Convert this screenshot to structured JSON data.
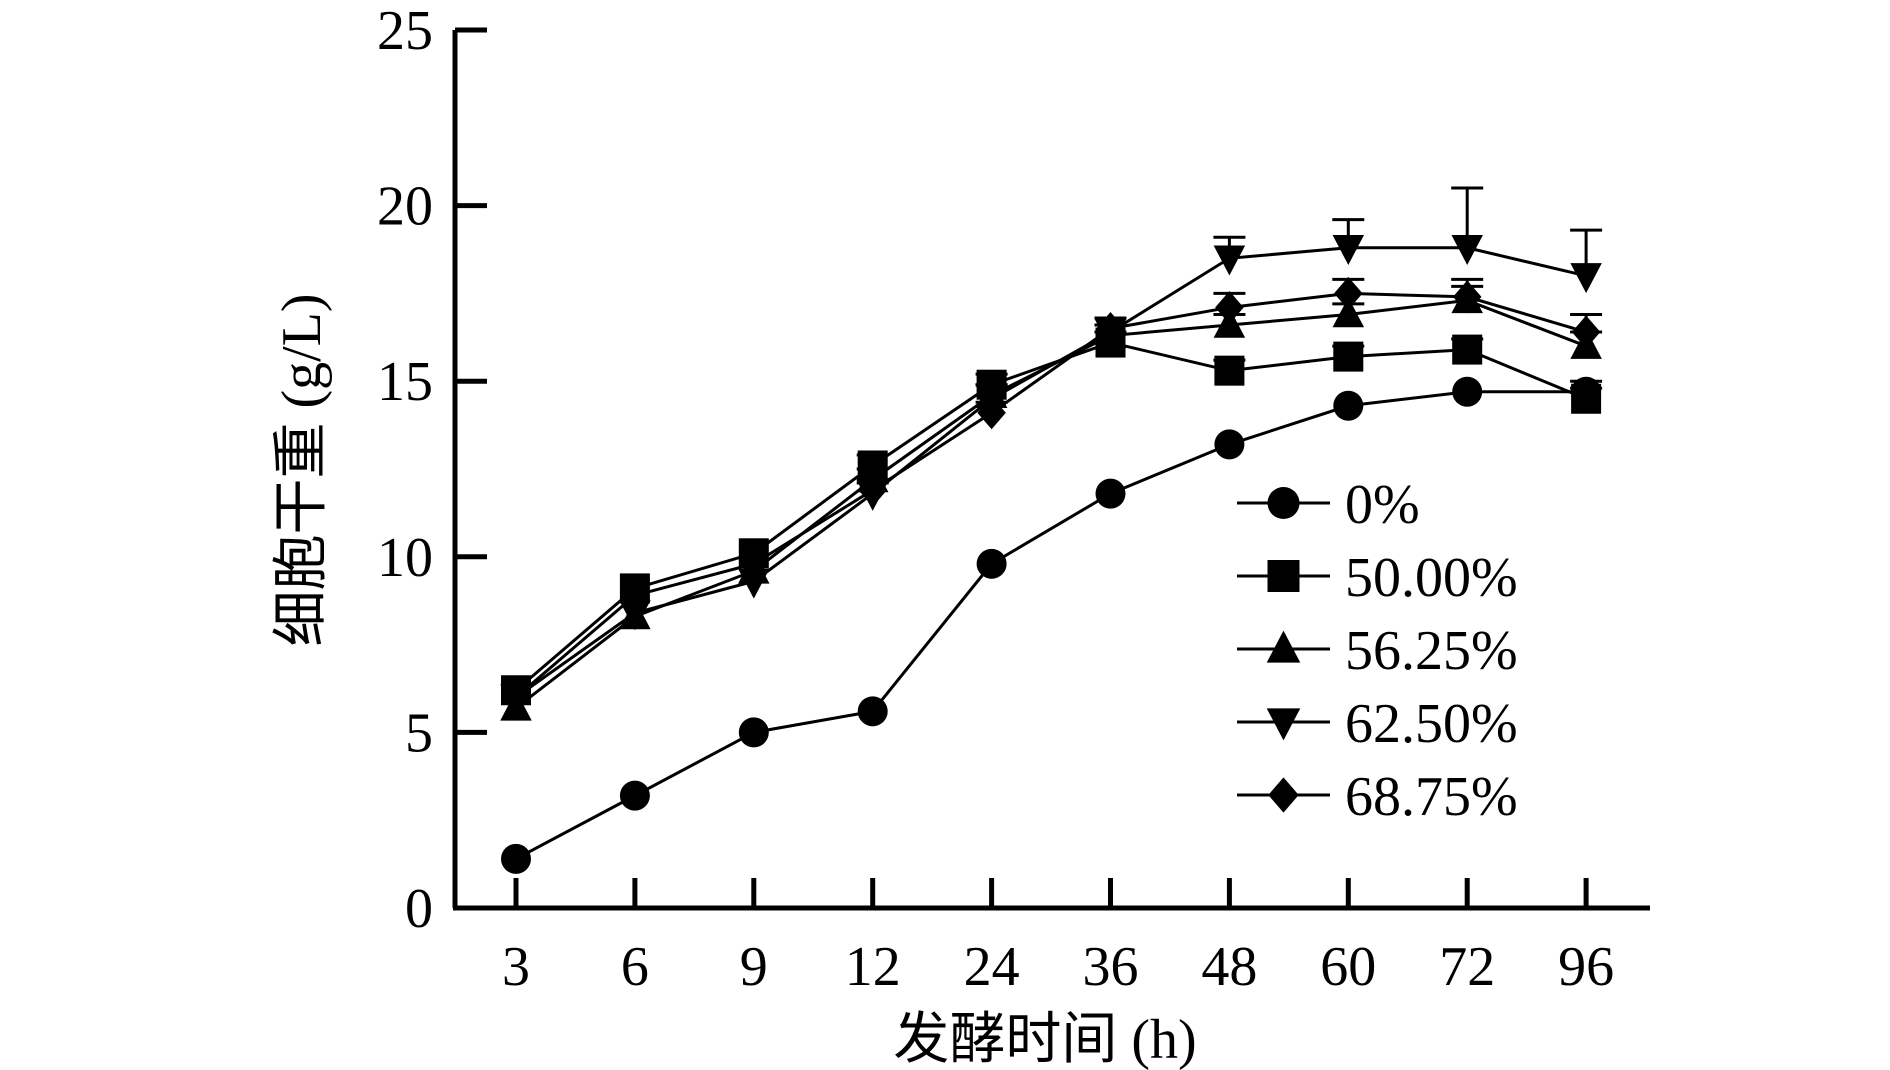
{
  "chart_data": {
    "type": "line",
    "title": "",
    "xlabel": "发酵时间 (h)",
    "ylabel": "细胞干重 (g/L)",
    "categories": [
      "3",
      "6",
      "9",
      "12",
      "24",
      "36",
      "48",
      "60",
      "72",
      "96"
    ],
    "ylim": [
      0,
      25
    ],
    "yticks": [
      "0",
      "5",
      "10",
      "15",
      "20",
      "25"
    ],
    "grid": false,
    "legend_position": "right-middle",
    "series": [
      {
        "name": "0%",
        "marker": "circle",
        "values": [
          1.4,
          3.2,
          5.0,
          5.6,
          9.8,
          11.8,
          13.2,
          14.3,
          14.7,
          14.7
        ],
        "errors": [
          0.1,
          0.1,
          0.1,
          0.1,
          0.2,
          0.2,
          0.2,
          0.2,
          0.2,
          0.3
        ]
      },
      {
        "name": "50.00%",
        "marker": "square",
        "values": [
          6.2,
          9.1,
          10.1,
          12.6,
          14.9,
          16.1,
          15.3,
          15.7,
          15.9,
          14.5
        ],
        "errors": [
          0.2,
          0.2,
          0.2,
          0.3,
          0.3,
          0.3,
          0.3,
          0.3,
          0.3,
          0.3
        ]
      },
      {
        "name": "56.25%",
        "marker": "triangle-up",
        "values": [
          5.7,
          8.3,
          9.6,
          12.2,
          14.6,
          16.3,
          16.6,
          16.9,
          17.3,
          16.0
        ],
        "errors": [
          0.2,
          0.2,
          0.2,
          0.3,
          0.3,
          0.3,
          0.3,
          0.3,
          0.4,
          0.4
        ]
      },
      {
        "name": "62.50%",
        "marker": "triangle-down",
        "values": [
          6.0,
          8.4,
          9.3,
          11.8,
          14.5,
          16.4,
          18.5,
          18.8,
          18.8,
          18.0
        ],
        "errors": [
          0.2,
          0.2,
          0.2,
          0.3,
          0.4,
          0.4,
          0.6,
          0.8,
          1.7,
          1.3
        ]
      },
      {
        "name": "68.75%",
        "marker": "diamond",
        "values": [
          6.0,
          8.9,
          9.8,
          11.9,
          14.1,
          16.5,
          17.1,
          17.5,
          17.4,
          16.4
        ],
        "errors": [
          0.2,
          0.2,
          0.2,
          0.3,
          0.3,
          0.3,
          0.4,
          0.4,
          0.5,
          0.5
        ]
      }
    ]
  }
}
